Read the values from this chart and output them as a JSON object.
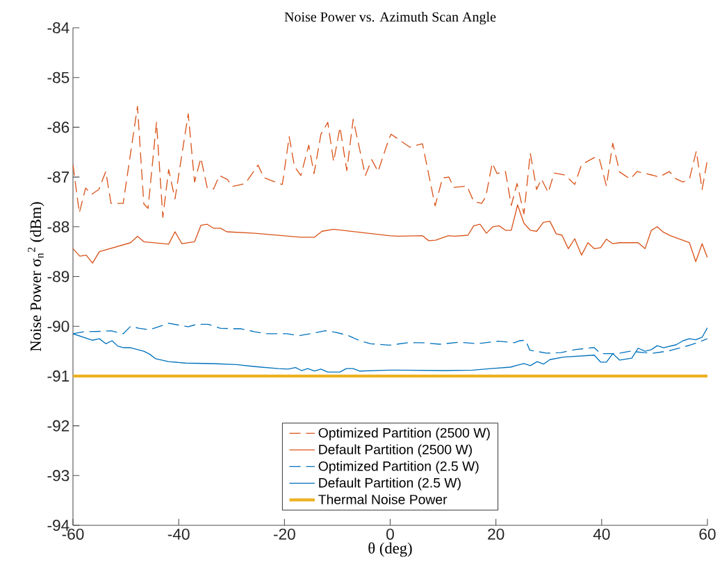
{
  "chart_data": {
    "type": "line",
    "title": "Noise Power vs. Azimuth Scan Angle",
    "xlabel": "θ (deg)",
    "ylabel": "Noise Power σ$_{n}$$^{2}$ (dBm)",
    "xlim": [
      -60,
      60
    ],
    "ylim": [
      -94,
      -84
    ],
    "xticks": [
      -60,
      -40,
      -20,
      0,
      20,
      40,
      60
    ],
    "yticks": [
      -94,
      -93,
      -92,
      -91,
      -90,
      -89,
      -88,
      -87,
      -86,
      -85,
      -84
    ],
    "grid": false,
    "legend": "bottom",
    "marker": "none",
    "series": [
      {
        "name": "Optimized Partition (2500 W)",
        "color": "#d95319",
        "line_style": "dashed",
        "x": [
          -60,
          -58.8,
          -57.6,
          -56.5,
          -55.1,
          -53.8,
          -52.8,
          -50.5,
          -47.8,
          -46.6,
          -45.8,
          -44.2,
          -43.0,
          -41.9,
          -40.7,
          -38.2,
          -37.0,
          -35.8,
          -34.6,
          -33.4,
          -32.3,
          -30.8,
          -29.9,
          -27.4,
          -25.0,
          -23.9,
          -22.5,
          -20.4,
          -19.1,
          -18.1,
          -16.9,
          -15.4,
          -14.4,
          -13.1,
          -11.8,
          -10.7,
          -9.5,
          -8.2,
          -7.0,
          -4.7,
          -3.5,
          -2.3,
          -0.2,
          0.2,
          3.7,
          6.1,
          8.5,
          9.9,
          11.1,
          12.0,
          14.5,
          15.8,
          17.3,
          18.1,
          19.3,
          20.2,
          21.8,
          22.9,
          24.0,
          25.3,
          26.5,
          27.7,
          28.6,
          29.9,
          31.0,
          33.1,
          34.9,
          36.2,
          38.6,
          39.5,
          40.9,
          42.1,
          43.4,
          45.4,
          46.7,
          49.5,
          50.9,
          52.8,
          54.1,
          55.4,
          56.6,
          57.9,
          59.0,
          60
        ],
        "values": [
          -86.75,
          -87.72,
          -87.22,
          -87.35,
          -87.25,
          -86.89,
          -87.53,
          -87.53,
          -85.58,
          -87.54,
          -87.63,
          -85.9,
          -87.81,
          -86.85,
          -87.44,
          -85.73,
          -87.1,
          -86.62,
          -87.22,
          -87.24,
          -86.97,
          -87.05,
          -87.19,
          -87.13,
          -86.76,
          -87.01,
          -87.07,
          -87.15,
          -86.19,
          -86.79,
          -86.97,
          -86.36,
          -86.93,
          -86.14,
          -85.9,
          -86.69,
          -86.0,
          -86.87,
          -85.84,
          -86.97,
          -86.65,
          -86.89,
          -86.22,
          -86.14,
          -86.4,
          -86.33,
          -87.58,
          -87.02,
          -87.0,
          -87.21,
          -87.18,
          -87.49,
          -87.53,
          -87.39,
          -86.72,
          -86.93,
          -86.89,
          -87.57,
          -87.13,
          -87.74,
          -86.52,
          -87.25,
          -87.04,
          -87.31,
          -86.92,
          -86.96,
          -87.15,
          -86.75,
          -86.61,
          -86.61,
          -87.18,
          -86.32,
          -86.9,
          -87.04,
          -86.89,
          -86.96,
          -87.0,
          -86.89,
          -87.04,
          -87.1,
          -87.04,
          -86.48,
          -87.25,
          -86.65
        ]
      },
      {
        "name": "Default Partition (2500 W)",
        "color": "#d95319",
        "line_style": "solid",
        "x": [
          -60,
          -58.7,
          -57.5,
          -56.3,
          -55.0,
          -49.1,
          -47.8,
          -46.6,
          -41.9,
          -40.7,
          -39.4,
          -37.0,
          -35.8,
          -34.6,
          -33.4,
          -32.1,
          -30.9,
          -25.6,
          -16.9,
          -14.3,
          -12.9,
          -10.7,
          -5.9,
          -0.2,
          1.5,
          6.1,
          7.3,
          8.6,
          11.0,
          12.2,
          14.7,
          15.8,
          17.0,
          18.2,
          19.4,
          20.6,
          21.8,
          22.9,
          24.1,
          25.3,
          26.5,
          27.7,
          29.0,
          30.2,
          31.4,
          32.5,
          33.7,
          34.9,
          36.2,
          37.4,
          38.6,
          39.8,
          40.9,
          42.1,
          43.4,
          46.9,
          48.2,
          49.4,
          50.5,
          51.7,
          53.0,
          56.6,
          57.8,
          59.0,
          60
        ],
        "values": [
          -88.44,
          -88.59,
          -88.57,
          -88.73,
          -88.5,
          -88.32,
          -88.19,
          -88.3,
          -88.35,
          -88.1,
          -88.34,
          -88.3,
          -87.97,
          -87.95,
          -88.03,
          -88.03,
          -88.1,
          -88.13,
          -88.21,
          -88.21,
          -88.09,
          -88.05,
          -88.11,
          -88.18,
          -88.19,
          -88.18,
          -88.28,
          -88.27,
          -88.18,
          -88.19,
          -88.17,
          -87.98,
          -87.95,
          -88.13,
          -88.0,
          -87.98,
          -88.07,
          -88.07,
          -87.56,
          -87.93,
          -88.07,
          -88.09,
          -87.91,
          -87.89,
          -88.14,
          -88.17,
          -88.44,
          -88.24,
          -88.57,
          -88.32,
          -88.44,
          -88.42,
          -88.25,
          -88.34,
          -88.32,
          -88.32,
          -88.44,
          -88.07,
          -88.0,
          -88.11,
          -88.18,
          -88.32,
          -88.7,
          -88.34,
          -88.62
        ]
      },
      {
        "name": "Optimized Partition (2.5 W)",
        "color": "#0072bd",
        "line_style": "dashed",
        "x": [
          -60,
          -58.0,
          -54.1,
          -52.8,
          -50.5,
          -49.1,
          -47.5,
          -45.5,
          -41.9,
          -38.2,
          -36.6,
          -34.4,
          -32.1,
          -30.0,
          -28.2,
          -25.6,
          -23.5,
          -21.2,
          -19.5,
          -17.3,
          -14.7,
          -12.3,
          -10.3,
          -8.1,
          -5.5,
          -3.7,
          -0.2,
          3.4,
          6.0,
          9.4,
          13.0,
          16.5,
          20.4,
          23.5,
          24.5,
          25.6,
          26.4,
          29.6,
          32.3,
          34.9,
          38.2,
          38.6,
          39.8,
          42.8,
          45.4,
          48.0,
          49.8,
          52.4,
          55.0,
          57.0,
          60
        ],
        "values": [
          -90.15,
          -90.11,
          -90.1,
          -90.09,
          -90.15,
          -90.0,
          -90.04,
          -90.07,
          -89.94,
          -90.01,
          -89.96,
          -89.96,
          -90.04,
          -90.05,
          -90.05,
          -90.11,
          -90.15,
          -90.15,
          -90.15,
          -90.19,
          -90.14,
          -90.09,
          -90.12,
          -90.18,
          -90.3,
          -90.35,
          -90.38,
          -90.33,
          -90.33,
          -90.36,
          -90.32,
          -90.35,
          -90.3,
          -90.33,
          -90.29,
          -90.28,
          -90.48,
          -90.54,
          -90.53,
          -90.47,
          -90.43,
          -90.43,
          -90.55,
          -90.55,
          -90.5,
          -90.53,
          -90.54,
          -90.5,
          -90.43,
          -90.37,
          -90.25
        ]
      },
      {
        "name": "Default Partition (2.5 W)",
        "color": "#0072bd",
        "line_style": "solid",
        "x": [
          -60,
          -56.3,
          -55.0,
          -53.8,
          -52.6,
          -51.5,
          -50.4,
          -49.1,
          -46.6,
          -45.5,
          -44.4,
          -41.9,
          -38.7,
          -33.4,
          -29.1,
          -25.6,
          -21.2,
          -19.3,
          -17.9,
          -16.8,
          -15.6,
          -14.3,
          -13.1,
          -11.8,
          -9.5,
          -8.3,
          -7.0,
          -5.8,
          -0.2,
          1.5,
          10.3,
          15.6,
          19.1,
          22.8,
          24.1,
          25.3,
          26.5,
          27.8,
          29.0,
          30.2,
          32.7,
          38.6,
          39.8,
          40.9,
          42.1,
          43.4,
          45.7,
          46.9,
          48.2,
          49.4,
          50.5,
          51.7,
          54.1,
          55.4,
          56.6,
          57.8,
          59.0,
          60
        ],
        "values": [
          -90.15,
          -90.28,
          -90.25,
          -90.35,
          -90.29,
          -90.4,
          -90.43,
          -90.43,
          -90.5,
          -90.56,
          -90.65,
          -90.71,
          -90.74,
          -90.75,
          -90.77,
          -90.81,
          -90.85,
          -90.86,
          -90.83,
          -90.89,
          -90.85,
          -90.9,
          -90.86,
          -90.92,
          -90.92,
          -90.85,
          -90.85,
          -90.9,
          -90.88,
          -90.88,
          -90.89,
          -90.88,
          -90.85,
          -90.82,
          -90.78,
          -90.75,
          -90.79,
          -90.71,
          -90.76,
          -90.67,
          -90.62,
          -90.58,
          -90.72,
          -90.72,
          -90.55,
          -90.68,
          -90.64,
          -90.44,
          -90.5,
          -90.47,
          -90.39,
          -90.43,
          -90.37,
          -90.29,
          -90.25,
          -90.27,
          -90.22,
          -90.03
        ]
      }
    ],
    "ref_lines": [
      {
        "axis": "y",
        "value": -91,
        "label": "Thermal Noise Power",
        "color": "#edb120",
        "line_style": "solid"
      }
    ]
  }
}
